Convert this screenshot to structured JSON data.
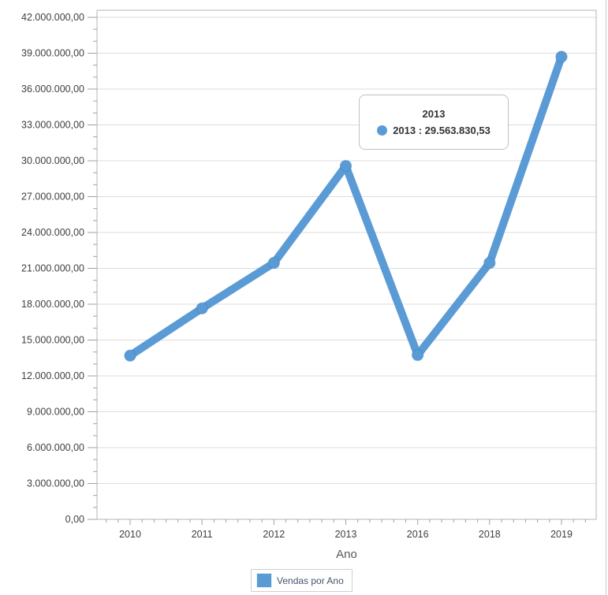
{
  "chart_data": {
    "type": "line",
    "title": "",
    "xlabel": "Ano",
    "ylabel": "",
    "categories": [
      "2010",
      "2011",
      "2012",
      "2013",
      "2016",
      "2018",
      "2019"
    ],
    "series": [
      {
        "name": "Vendas por Ano",
        "values": [
          13700000,
          17650000,
          21450000,
          29563830.53,
          13750000,
          21450000,
          38700000
        ]
      }
    ],
    "ylim": [
      0,
      42000000
    ],
    "y_tick_step": 3000000,
    "y_tick_labels": [
      "0,00",
      "3.000.000,00",
      "6.000.000,00",
      "9.000.000,00",
      "12.000.000,00",
      "15.000.000,00",
      "18.000.000,00",
      "21.000.000,00",
      "24.000.000,00",
      "27.000.000,00",
      "30.000.000,00",
      "33.000.000,00",
      "36.000.000,00",
      "39.000.000,00",
      "42.000.000,00"
    ],
    "grid": "horizontal",
    "legend_position": "bottom"
  },
  "tooltip": {
    "title": "2013",
    "value_text": "2013 : 29.563.830,53"
  },
  "legend": {
    "label": "Vendas por Ano"
  },
  "colors": {
    "line": "#5b9bd5",
    "marker_ring": "#4186c6",
    "grid": "#dcdcdc",
    "plot_border": "#b6b6b6",
    "tick": "#a0a0a0",
    "text": "#3f3f3f",
    "legend_text": "#44546a",
    "frame": "#c9c9c9"
  }
}
